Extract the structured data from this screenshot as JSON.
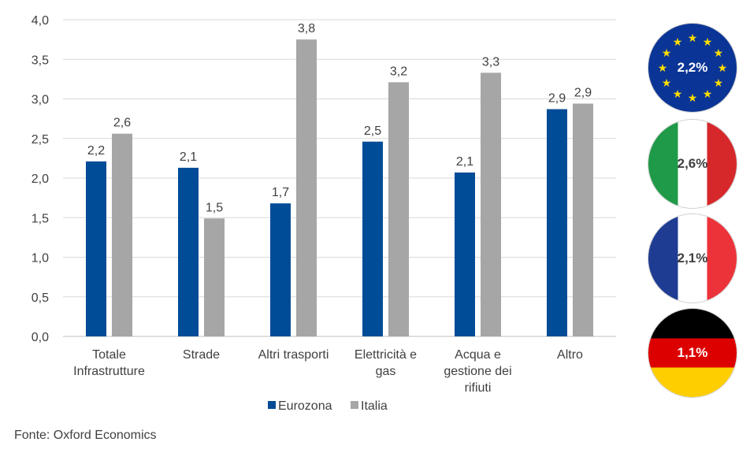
{
  "chart_data": {
    "type": "bar",
    "categories": [
      [
        "Totale",
        "Infrastrutture"
      ],
      [
        "Strade"
      ],
      [
        "Altri trasporti"
      ],
      [
        "Elettricità e",
        "gas"
      ],
      [
        "Acqua e",
        "gestione dei",
        "rifiuti"
      ],
      [
        "Altro"
      ]
    ],
    "series": [
      {
        "name": "Eurozona",
        "color": "#004c97",
        "values": [
          2.21,
          2.13,
          1.68,
          2.46,
          2.07,
          2.87
        ],
        "labels": [
          "2,2",
          "2,1",
          "1,7",
          "2,5",
          "2,1",
          "2,9"
        ]
      },
      {
        "name": "Italia",
        "color": "#a6a6a6",
        "values": [
          2.56,
          1.49,
          3.75,
          3.21,
          3.33,
          2.94
        ],
        "labels": [
          "2,6",
          "1,5",
          "3,8",
          "3,2",
          "3,3",
          "2,9"
        ]
      }
    ],
    "ylim": [
      0,
      4
    ],
    "yticks": [
      "0,0",
      "0,5",
      "1,0",
      "1,5",
      "2,0",
      "2,5",
      "3,0",
      "3,5",
      "4,0"
    ],
    "grid": true,
    "legend_position": "bottom",
    "title": "",
    "xlabel": "",
    "ylabel": ""
  },
  "flags": [
    {
      "country": "Eurozona",
      "icon": "eu-flag-icon",
      "value": "2,2%",
      "text_color": "#ffffff"
    },
    {
      "country": "Italia",
      "icon": "italy-flag-icon",
      "value": "2,6%",
      "text_color": "#404040"
    },
    {
      "country": "Francia",
      "icon": "france-flag-icon",
      "value": "2,1%",
      "text_color": "#404040"
    },
    {
      "country": "Germania",
      "icon": "germany-flag-icon",
      "value": "1,1%",
      "text_color": "#ffffff"
    }
  ],
  "source": "Fonte: Oxford Economics"
}
